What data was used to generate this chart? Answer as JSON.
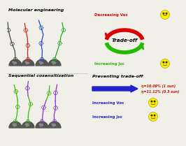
{
  "bg_color": "#f0f0e8",
  "title_mol_eng": "Molecular engineering",
  "title_seq_cos": "Sequential cosensitization",
  "label_tradeoff": "Trade-off",
  "label_decreasing_voc": "Decreasing Voc",
  "label_increasing_jsc": "Increasing Jsc",
  "label_preventing": "Preventing trade-off",
  "label_eta1": "η=10.09% (1 sun)",
  "label_eta2": "η=11.12% (0.3 sun)",
  "label_increasing_voc2": "Increasing Voc",
  "label_increasing_jsc2": "Increasing Jsc",
  "color_red": "#dd0000",
  "color_green": "#22bb00",
  "color_blue": "#2222cc",
  "color_eta": "#cc1100",
  "smile_yellow": "#ffee00",
  "mol_colors_top": [
    "#444444",
    "#cc2222",
    "#2244cc",
    "#22aa22"
  ],
  "mol_colors_bot_green": "#33bb00",
  "mol_colors_bot_purple": "#8833cc",
  "hemi_color": "#555555",
  "white": "#ffffff"
}
